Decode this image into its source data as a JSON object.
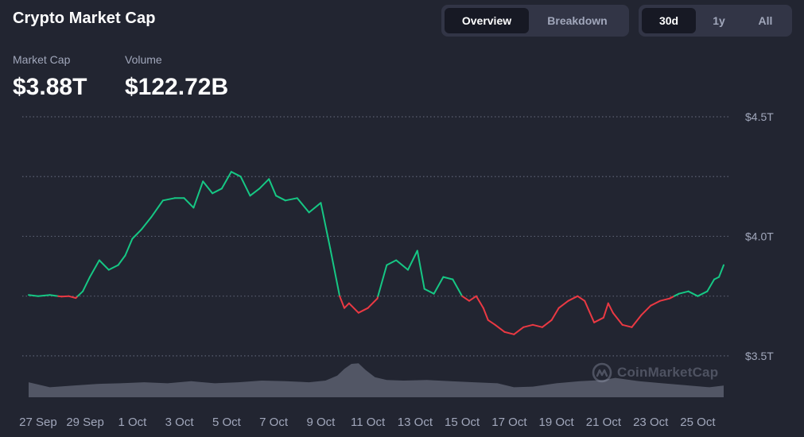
{
  "header": {
    "title": "Crypto Market Cap"
  },
  "stats": {
    "market_cap_label": "Market Cap",
    "market_cap_value": "$3.88T",
    "volume_label": "Volume",
    "volume_value": "$122.72B"
  },
  "view_toggle": {
    "options": [
      "Overview",
      "Breakdown"
    ],
    "selected": "Overview"
  },
  "range_toggle": {
    "options": [
      "30d",
      "1y",
      "All"
    ],
    "selected": "30d"
  },
  "watermark": {
    "text": "CoinMarketCap",
    "icon": "coinmarketcap-logo-icon"
  },
  "colors": {
    "background": "#222531",
    "up": "#16c784",
    "down": "#ea3943",
    "grid": "#5b6072",
    "volume": "#5b5f6e",
    "text_muted": "#a1a7bb"
  },
  "chart_data": {
    "type": "line",
    "title": "",
    "xlabel": "",
    "ylabel": "",
    "y_tick_labels": [
      "$3.5T",
      "$4.0T",
      "$4.5T"
    ],
    "y_ticks": [
      3.5,
      4.0,
      4.5
    ],
    "ylim": [
      3.37,
      4.53
    ],
    "x_tick_labels": [
      "27 Sep",
      "29 Sep",
      "1 Oct",
      "3 Oct",
      "5 Oct",
      "7 Oct",
      "9 Oct",
      "11 Oct",
      "13 Oct",
      "15 Oct",
      "17 Oct",
      "19 Oct",
      "21 Oct",
      "23 Oct",
      "25 Oct"
    ],
    "x_tick_days": [
      0,
      2,
      4,
      6,
      8,
      10,
      12,
      14,
      16,
      18,
      20,
      22,
      24,
      26,
      28
    ],
    "xlim": [
      -0.4,
      29.1
    ],
    "baseline": 3.75,
    "baseline_style": "dotted",
    "grid": "horizontal dotted",
    "line_color_rule": "green above baseline, red below baseline",
    "series": [
      {
        "x": [
          -0.4,
          0.0,
          0.5,
          1.0,
          1.3,
          1.6,
          1.9,
          2.2,
          2.6,
          3.0,
          3.4,
          3.7,
          4.0,
          4.4,
          4.8,
          5.3,
          5.8,
          6.2,
          6.6,
          7.0,
          7.4,
          7.8,
          8.2,
          8.6,
          9.0,
          9.4,
          9.8,
          10.1,
          10.5,
          11.0,
          11.5,
          12.0,
          12.4,
          12.8,
          13.0,
          13.2,
          13.6,
          14.0,
          14.4,
          14.8,
          15.2,
          15.7,
          16.1,
          16.4,
          16.8,
          17.2,
          17.6,
          18.0,
          18.3,
          18.6,
          18.9,
          19.1,
          19.4,
          19.8,
          20.2,
          20.6,
          21.0,
          21.4,
          21.8,
          22.1,
          22.5,
          22.9,
          23.2,
          23.6,
          24.0,
          24.2,
          24.4,
          24.8,
          25.2,
          25.6,
          26.0,
          26.4,
          26.8,
          27.2,
          27.6,
          28.0,
          28.4,
          28.7,
          28.9,
          29.1
        ],
        "y": [
          3.755,
          3.75,
          3.755,
          3.748,
          3.75,
          3.742,
          3.77,
          3.83,
          3.9,
          3.86,
          3.88,
          3.92,
          3.99,
          4.03,
          4.08,
          4.15,
          4.16,
          4.16,
          4.12,
          4.23,
          4.18,
          4.2,
          4.27,
          4.25,
          4.17,
          4.2,
          4.24,
          4.17,
          4.15,
          4.16,
          4.1,
          4.14,
          3.95,
          3.75,
          3.7,
          3.72,
          3.68,
          3.7,
          3.74,
          3.88,
          3.9,
          3.86,
          3.94,
          3.78,
          3.76,
          3.83,
          3.82,
          3.75,
          3.73,
          3.75,
          3.7,
          3.65,
          3.63,
          3.6,
          3.59,
          3.62,
          3.63,
          3.62,
          3.65,
          3.7,
          3.73,
          3.75,
          3.73,
          3.64,
          3.66,
          3.72,
          3.68,
          3.63,
          3.62,
          3.67,
          3.71,
          3.73,
          3.74,
          3.76,
          3.77,
          3.75,
          3.77,
          3.82,
          3.83,
          3.88
        ]
      }
    ],
    "volume_series": {
      "type": "area",
      "x": [
        -0.4,
        0.5,
        1.5,
        2.5,
        3.5,
        4.5,
        5.5,
        6.5,
        7.5,
        8.5,
        9.5,
        10.5,
        11.5,
        12.2,
        12.7,
        13.0,
        13.3,
        13.6,
        13.9,
        14.3,
        14.8,
        15.5,
        16.5,
        17.5,
        18.5,
        19.5,
        20.2,
        21.0,
        22.0,
        23.0,
        24.0,
        24.5,
        25.5,
        26.5,
        27.5,
        28.5,
        29.1
      ],
      "y": [
        0.45,
        0.3,
        0.35,
        0.4,
        0.42,
        0.45,
        0.42,
        0.48,
        0.42,
        0.45,
        0.5,
        0.48,
        0.45,
        0.5,
        0.65,
        0.85,
        1.0,
        1.02,
        0.82,
        0.6,
        0.52,
        0.5,
        0.52,
        0.48,
        0.45,
        0.42,
        0.3,
        0.32,
        0.42,
        0.48,
        0.52,
        0.58,
        0.48,
        0.42,
        0.36,
        0.3,
        0.35
      ]
    }
  }
}
